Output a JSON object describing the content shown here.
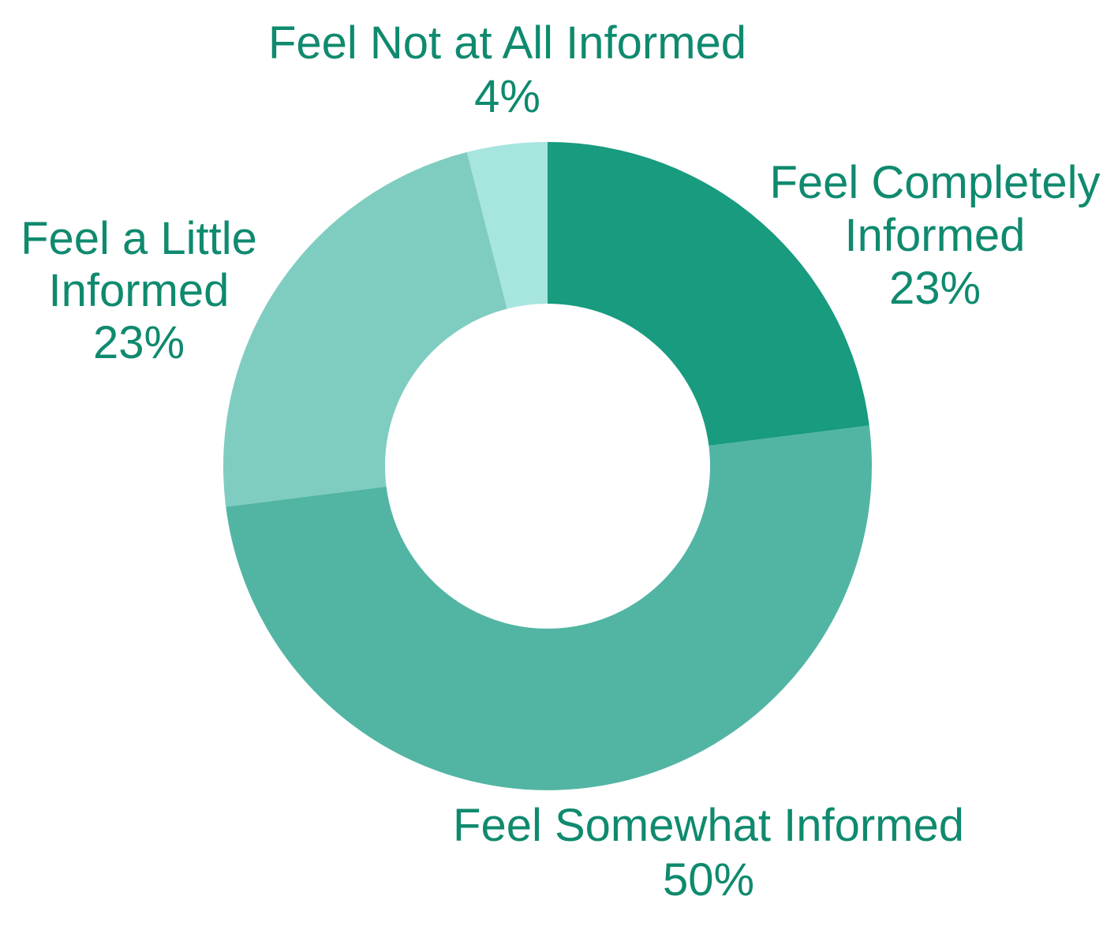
{
  "chart_data": {
    "type": "pie",
    "variant": "donut",
    "start": "12 o'clock, clockwise",
    "label_color": "#0f8a6e",
    "slices": [
      {
        "label_lines": [
          "Feel Completely",
          "Informed"
        ],
        "value": 23,
        "value_label": "23%",
        "color": "#189b7e"
      },
      {
        "label_lines": [
          "Feel Somewhat Informed"
        ],
        "value": 50,
        "value_label": "50%",
        "color": "#52b5a3"
      },
      {
        "label_lines": [
          "Feel a Little",
          "Informed"
        ],
        "value": 23,
        "value_label": "23%",
        "color": "#7fcdc0"
      },
      {
        "label_lines": [
          "Feel Not at All Informed"
        ],
        "value": 4,
        "value_label": "4%",
        "color": "#a7e5df"
      }
    ]
  }
}
